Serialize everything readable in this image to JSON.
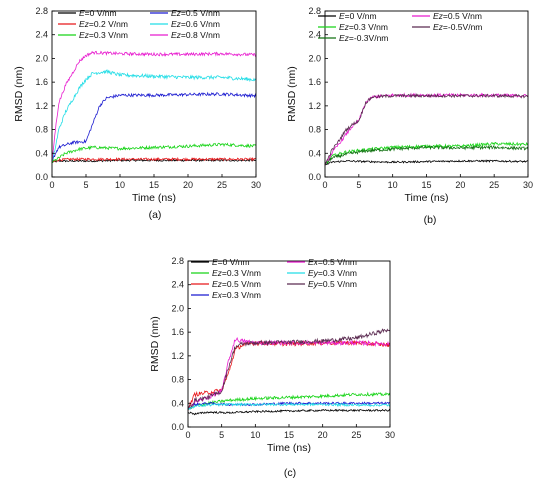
{
  "figure": {
    "caption_a": "(a)",
    "caption_b": "(b)",
    "caption_c": "(c)"
  },
  "chart_data": [
    {
      "id": "a",
      "type": "line",
      "xlabel": "Time (ns)",
      "ylabel": "RMSD (nm)",
      "xlim": [
        0,
        30
      ],
      "ylim": [
        0.0,
        2.8
      ],
      "xticks": [
        "0",
        "5",
        "10",
        "15",
        "20",
        "25",
        "30"
      ],
      "yticks": [
        "0.0",
        "0.4",
        "0.8",
        "1.2",
        "1.6",
        "2.0",
        "2.4",
        "2.8"
      ],
      "legend_position": "top",
      "series": [
        {
          "prefix": "E",
          "suffix": "=0 V/nm",
          "color": "#000000",
          "points": [
            [
              0,
              0.25
            ],
            [
              0.5,
              0.26
            ],
            [
              1,
              0.27
            ],
            [
              2,
              0.27
            ],
            [
              4,
              0.27
            ],
            [
              6,
              0.27
            ],
            [
              10,
              0.28
            ],
            [
              15,
              0.28
            ],
            [
              20,
              0.28
            ],
            [
              25,
              0.28
            ],
            [
              30,
              0.28
            ]
          ],
          "noise": 0.015
        },
        {
          "prefix": "Ez",
          "suffix": "=0.2 V/nm",
          "color": "#e8171b",
          "points": [
            [
              0,
              0.25
            ],
            [
              0.5,
              0.27
            ],
            [
              1,
              0.29
            ],
            [
              3,
              0.3
            ],
            [
              6,
              0.3
            ],
            [
              10,
              0.3
            ],
            [
              15,
              0.3
            ],
            [
              20,
              0.3
            ],
            [
              25,
              0.3
            ],
            [
              30,
              0.3
            ]
          ],
          "noise": 0.02
        },
        {
          "prefix": "Ez",
          "suffix": "=0.3 V/nm",
          "color": "#18d418",
          "points": [
            [
              0,
              0.25
            ],
            [
              1,
              0.32
            ],
            [
              2,
              0.4
            ],
            [
              4,
              0.47
            ],
            [
              6,
              0.5
            ],
            [
              10,
              0.48
            ],
            [
              15,
              0.5
            ],
            [
              20,
              0.52
            ],
            [
              25,
              0.55
            ],
            [
              30,
              0.52
            ]
          ],
          "noise": 0.025
        },
        {
          "prefix": "Ez",
          "suffix": "=0.5 V/nm",
          "color": "#1a1ad0",
          "points": [
            [
              0,
              0.25
            ],
            [
              0.5,
              0.4
            ],
            [
              1,
              0.5
            ],
            [
              3,
              0.58
            ],
            [
              5,
              0.6
            ],
            [
              6,
              0.9
            ],
            [
              7,
              1.2
            ],
            [
              8,
              1.33
            ],
            [
              10,
              1.38
            ],
            [
              15,
              1.38
            ],
            [
              20,
              1.39
            ],
            [
              25,
              1.4
            ],
            [
              30,
              1.37
            ]
          ],
          "noise": 0.025
        },
        {
          "prefix": "Ez",
          "suffix": "=0.6 V/nm",
          "color": "#22dde6",
          "points": [
            [
              0,
              0.25
            ],
            [
              0.5,
              0.5
            ],
            [
              1,
              0.8
            ],
            [
              2,
              1.1
            ],
            [
              3,
              1.3
            ],
            [
              4,
              1.5
            ],
            [
              5,
              1.65
            ],
            [
              6,
              1.75
            ],
            [
              8,
              1.78
            ],
            [
              10,
              1.72
            ],
            [
              15,
              1.7
            ],
            [
              20,
              1.68
            ],
            [
              25,
              1.68
            ],
            [
              30,
              1.64
            ]
          ],
          "noise": 0.03
        },
        {
          "prefix": "Ez",
          "suffix": "=0.8 V/nm",
          "color": "#e81ccf",
          "points": [
            [
              0,
              0.25
            ],
            [
              0.5,
              0.8
            ],
            [
              1,
              1.25
            ],
            [
              2,
              1.55
            ],
            [
              3,
              1.75
            ],
            [
              4,
              1.95
            ],
            [
              5,
              2.05
            ],
            [
              6,
              2.1
            ],
            [
              10,
              2.08
            ],
            [
              15,
              2.07
            ],
            [
              20,
              2.07
            ],
            [
              25,
              2.08
            ],
            [
              30,
              2.06
            ]
          ],
          "noise": 0.025
        }
      ]
    },
    {
      "id": "b",
      "type": "line",
      "xlabel": "Time (ns)",
      "ylabel": "RMSD (nm)",
      "xlim": [
        0,
        30
      ],
      "ylim": [
        0.0,
        2.8
      ],
      "xticks": [
        "0",
        "5",
        "10",
        "15",
        "20",
        "25",
        "30"
      ],
      "yticks": [
        "0.0",
        "0.4",
        "0.8",
        "1.2",
        "1.6",
        "2.0",
        "2.4",
        "2.8"
      ],
      "legend_position": "top",
      "series": [
        {
          "prefix": "E",
          "suffix": "=0 V/nm",
          "color": "#000000",
          "points": [
            [
              0,
              0.2
            ],
            [
              1,
              0.25
            ],
            [
              3,
              0.27
            ],
            [
              6,
              0.26
            ],
            [
              10,
              0.25
            ],
            [
              15,
              0.26
            ],
            [
              20,
              0.27
            ],
            [
              25,
              0.27
            ],
            [
              30,
              0.26
            ]
          ],
          "noise": 0.015
        },
        {
          "prefix": "Ez",
          "suffix": "=0.3 V/nm",
          "color": "#18d418",
          "points": [
            [
              0,
              0.2
            ],
            [
              1,
              0.35
            ],
            [
              3,
              0.42
            ],
            [
              6,
              0.46
            ],
            [
              10,
              0.5
            ],
            [
              15,
              0.52
            ],
            [
              20,
              0.52
            ],
            [
              25,
              0.56
            ],
            [
              30,
              0.55
            ]
          ],
          "noise": 0.025
        },
        {
          "prefix": "Ez",
          "suffix": "=-0.3V/nm",
          "color": "#107010",
          "points": [
            [
              0,
              0.2
            ],
            [
              1,
              0.32
            ],
            [
              3,
              0.38
            ],
            [
              6,
              0.44
            ],
            [
              10,
              0.47
            ],
            [
              15,
              0.5
            ],
            [
              20,
              0.49
            ],
            [
              25,
              0.5
            ],
            [
              30,
              0.48
            ]
          ],
          "noise": 0.025
        },
        {
          "prefix": "Ez",
          "suffix": "=0.5 V/nm",
          "color": "#e81ccf",
          "points": [
            [
              0,
              0.2
            ],
            [
              1,
              0.4
            ],
            [
              2,
              0.55
            ],
            [
              3,
              0.7
            ],
            [
              4,
              0.85
            ],
            [
              5,
              0.95
            ],
            [
              6,
              1.25
            ],
            [
              7,
              1.35
            ],
            [
              10,
              1.38
            ],
            [
              15,
              1.38
            ],
            [
              20,
              1.38
            ],
            [
              25,
              1.38
            ],
            [
              30,
              1.37
            ]
          ],
          "noise": 0.025
        },
        {
          "prefix": "Ez",
          "suffix": "=-0.5V/nm",
          "color": "#5a2a50",
          "points": [
            [
              0,
              0.2
            ],
            [
              1,
              0.45
            ],
            [
              2,
              0.6
            ],
            [
              3,
              0.78
            ],
            [
              4,
              0.88
            ],
            [
              5,
              0.95
            ],
            [
              6,
              1.25
            ],
            [
              7,
              1.35
            ],
            [
              10,
              1.37
            ],
            [
              15,
              1.37
            ],
            [
              20,
              1.37
            ],
            [
              25,
              1.37
            ],
            [
              30,
              1.36
            ]
          ],
          "noise": 0.025
        }
      ]
    },
    {
      "id": "c",
      "type": "line",
      "xlabel": "Time (ns)",
      "ylabel": "RMSD (nm)",
      "xlim": [
        0,
        30
      ],
      "ylim": [
        0.0,
        2.8
      ],
      "xticks": [
        "0",
        "5",
        "10",
        "15",
        "20",
        "25",
        "30"
      ],
      "yticks": [
        "0.0",
        "0.4",
        "0.8",
        "1.2",
        "1.6",
        "2.0",
        "2.4",
        "2.8"
      ],
      "legend_position": "top",
      "series": [
        {
          "prefix": "E",
          "suffix": "=0 V/nm",
          "color": "#000000",
          "points": [
            [
              0,
              0.25
            ],
            [
              1,
              0.22
            ],
            [
              3,
              0.25
            ],
            [
              6,
              0.24
            ],
            [
              10,
              0.26
            ],
            [
              15,
              0.27
            ],
            [
              20,
              0.28
            ],
            [
              25,
              0.28
            ],
            [
              30,
              0.28
            ]
          ],
          "noise": 0.015
        },
        {
          "prefix": "Ez",
          "suffix": "=0.3 V/nm",
          "color": "#18d418",
          "points": [
            [
              0,
              0.3
            ],
            [
              1,
              0.35
            ],
            [
              3,
              0.4
            ],
            [
              6,
              0.45
            ],
            [
              10,
              0.48
            ],
            [
              15,
              0.5
            ],
            [
              20,
              0.52
            ],
            [
              25,
              0.55
            ],
            [
              30,
              0.55
            ]
          ],
          "noise": 0.025
        },
        {
          "prefix": "Ez",
          "suffix": "=0.5 V/nm",
          "color": "#e8171b",
          "points": [
            [
              0,
              0.3
            ],
            [
              1,
              0.55
            ],
            [
              3,
              0.58
            ],
            [
              5,
              0.62
            ],
            [
              6,
              0.9
            ],
            [
              7,
              1.3
            ],
            [
              8,
              1.38
            ],
            [
              10,
              1.42
            ],
            [
              15,
              1.4
            ],
            [
              20,
              1.42
            ],
            [
              25,
              1.42
            ],
            [
              30,
              1.38
            ]
          ],
          "noise": 0.035
        },
        {
          "prefix": "Ex",
          "suffix": "=0.3 V/nm",
          "color": "#1a1ad0",
          "points": [
            [
              0,
              0.3
            ],
            [
              1,
              0.38
            ],
            [
              3,
              0.4
            ],
            [
              6,
              0.38
            ],
            [
              10,
              0.38
            ],
            [
              15,
              0.4
            ],
            [
              20,
              0.4
            ],
            [
              25,
              0.4
            ],
            [
              30,
              0.4
            ]
          ],
          "noise": 0.02
        },
        {
          "prefix": "Ex",
          "suffix": "=0.5 V/nm",
          "color": "#e81ccf",
          "points": [
            [
              0,
              0.3
            ],
            [
              1,
              0.42
            ],
            [
              3,
              0.5
            ],
            [
              5,
              0.6
            ],
            [
              6,
              1.1
            ],
            [
              7,
              1.48
            ],
            [
              8,
              1.45
            ],
            [
              10,
              1.42
            ],
            [
              15,
              1.42
            ],
            [
              20,
              1.42
            ],
            [
              25,
              1.42
            ],
            [
              30,
              1.4
            ]
          ],
          "noise": 0.035
        },
        {
          "prefix": "Ey",
          "suffix": "=0.3 V/nm",
          "color": "#22dde6",
          "points": [
            [
              0,
              0.3
            ],
            [
              1,
              0.35
            ],
            [
              3,
              0.37
            ],
            [
              6,
              0.38
            ],
            [
              10,
              0.38
            ],
            [
              15,
              0.38
            ],
            [
              20,
              0.38
            ],
            [
              25,
              0.37
            ],
            [
              30,
              0.37
            ]
          ],
          "noise": 0.02
        },
        {
          "prefix": "Ey",
          "suffix": "=0.5 V/nm",
          "color": "#5a2a50",
          "points": [
            [
              0,
              0.3
            ],
            [
              1,
              0.45
            ],
            [
              3,
              0.5
            ],
            [
              5,
              0.6
            ],
            [
              6,
              1.0
            ],
            [
              7,
              1.35
            ],
            [
              8,
              1.4
            ],
            [
              10,
              1.42
            ],
            [
              15,
              1.43
            ],
            [
              20,
              1.45
            ],
            [
              25,
              1.5
            ],
            [
              30,
              1.65
            ]
          ],
          "noise": 0.035
        }
      ]
    }
  ]
}
